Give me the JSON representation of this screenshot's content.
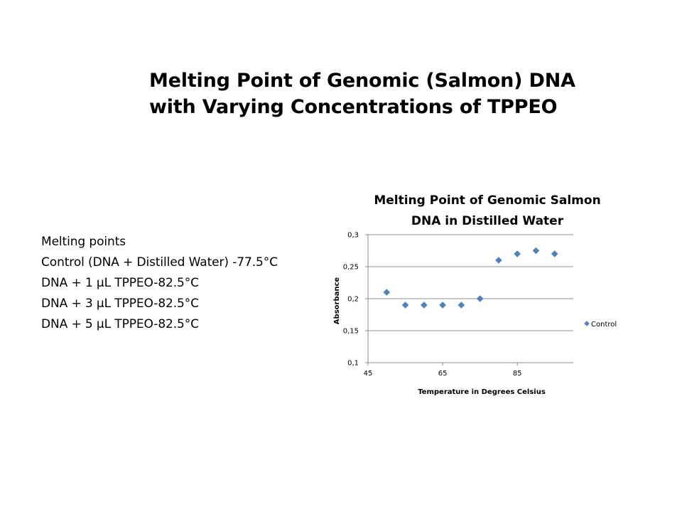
{
  "slide": {
    "title_lines": [
      "Melting Point of Genomic (Salmon) DNA",
      "with Varying Concentrations of TPPEO"
    ],
    "notes": [
      "Melting points",
      "Control (DNA + Distilled Water) -77.5°C",
      "DNA + 1 µL TPPEO-82.5°C",
      "DNA + 3 µL TPPEO-82.5°C",
      "DNA + 5 µL TPPEO-82.5°C"
    ]
  },
  "chart_data": {
    "type": "scatter",
    "title": "Melting Point of Genomic Salmon DNA in Distilled Water",
    "title_lines": [
      "Melting Point of Genomic Salmon",
      "DNA in Distilled Water"
    ],
    "xlabel": "Temperature in Degrees Celsius",
    "ylabel": "Absorbance",
    "xlim": [
      45,
      100
    ],
    "ylim": [
      0.1,
      0.3
    ],
    "x_ticks": [
      45,
      65,
      85
    ],
    "x_tick_labels": [
      "45",
      "65",
      "85"
    ],
    "y_ticks": [
      0.1,
      0.15,
      0.2,
      0.25,
      0.3
    ],
    "y_tick_labels": [
      "0,1",
      "0,15",
      "0,2",
      "0,25",
      "0,3"
    ],
    "grid": "horizontal major gridlines",
    "legend": "right",
    "marker": "diamond",
    "color": "#4f81bd",
    "series": [
      {
        "name": "Control",
        "x": [
          50,
          55,
          60,
          65,
          70,
          75,
          80,
          85,
          90,
          95
        ],
        "y": [
          0.21,
          0.19,
          0.19,
          0.19,
          0.19,
          0.2,
          0.26,
          0.27,
          0.275,
          0.27
        ]
      }
    ]
  }
}
